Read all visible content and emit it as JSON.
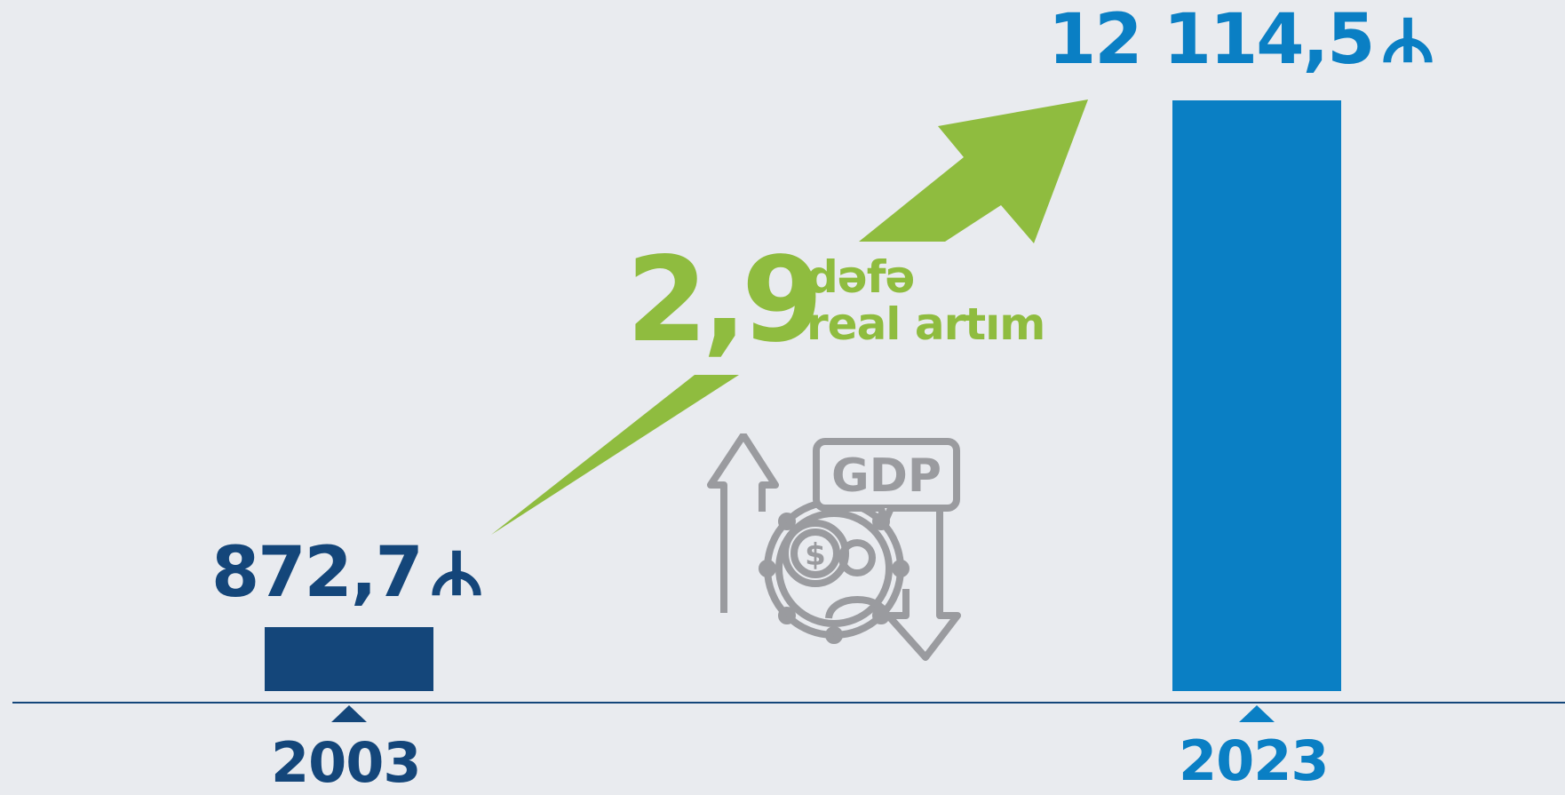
{
  "chart_data": {
    "type": "bar",
    "categories": [
      "2003",
      "2023"
    ],
    "values": [
      872.7,
      12114.5
    ],
    "value_labels": [
      "872,7",
      "12 114,5"
    ],
    "currency_symbol": "₼",
    "colors": {
      "2003": "#14467a",
      "2023": "#0a7fc4",
      "growth": "#8fbc3f",
      "icon": "#9a9b9f",
      "axis": "#14467a"
    },
    "annotation": {
      "value": "2,9",
      "line1": "dəfə",
      "line2": "real artım"
    },
    "icon_label": "GDP",
    "title": "",
    "xlabel": "",
    "ylabel": "",
    "grid": false,
    "legend": "none"
  }
}
